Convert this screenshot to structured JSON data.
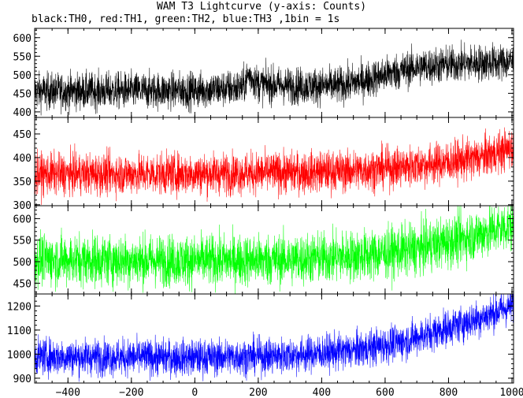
{
  "chart_data": {
    "type": "line",
    "title": "WAM T3 Lightcurve (y-axis: Counts)",
    "subtitle": "black:TH0, red:TH1, green:TH2, blue:TH3 ,1bin = 1s",
    "xlabel": "",
    "ylabel": "",
    "xlim": [
      -505,
      1005
    ],
    "x_ticks": [
      -400,
      -200,
      0,
      200,
      400,
      600,
      800,
      1000
    ],
    "grid": false,
    "panels": [
      {
        "name": "TH0",
        "color": "#000000",
        "ylim": [
          385,
          625
        ],
        "y_ticks": [
          400,
          450,
          500,
          550,
          600
        ],
        "trend": [
          [
            -505,
            455
          ],
          [
            0,
            458
          ],
          [
            150,
            465
          ],
          [
            170,
            500
          ],
          [
            200,
            475
          ],
          [
            300,
            470
          ],
          [
            450,
            470
          ],
          [
            500,
            478
          ],
          [
            560,
            490
          ],
          [
            620,
            505
          ],
          [
            700,
            520
          ],
          [
            800,
            528
          ],
          [
            900,
            532
          ],
          [
            1000,
            535
          ]
        ],
        "noise": 25
      },
      {
        "name": "TH1",
        "color": "#ff0000",
        "ylim": [
          298,
          485
        ],
        "y_ticks": [
          300,
          350,
          400,
          450
        ],
        "trend": [
          [
            -505,
            365
          ],
          [
            0,
            366
          ],
          [
            300,
            368
          ],
          [
            500,
            372
          ],
          [
            650,
            380
          ],
          [
            800,
            390
          ],
          [
            900,
            400
          ],
          [
            1000,
            420
          ]
        ],
        "noise": 22
      },
      {
        "name": "TH2",
        "color": "#00ff00",
        "ylim": [
          425,
          630
        ],
        "y_ticks": [
          450,
          500,
          550,
          600
        ],
        "trend": [
          [
            -505,
            505
          ],
          [
            0,
            502
          ],
          [
            300,
            505
          ],
          [
            550,
            515
          ],
          [
            700,
            530
          ],
          [
            850,
            555
          ],
          [
            1000,
            585
          ]
        ],
        "noise": 30
      },
      {
        "name": "TH3",
        "color": "#0000ff",
        "ylim": [
          880,
          1250
        ],
        "y_ticks": [
          900,
          1000,
          1100,
          1200
        ],
        "trend": [
          [
            -505,
            990
          ],
          [
            0,
            985
          ],
          [
            300,
            995
          ],
          [
            500,
            1015
          ],
          [
            650,
            1050
          ],
          [
            800,
            1110
          ],
          [
            900,
            1150
          ],
          [
            1000,
            1200
          ]
        ],
        "noise": 38
      }
    ]
  }
}
